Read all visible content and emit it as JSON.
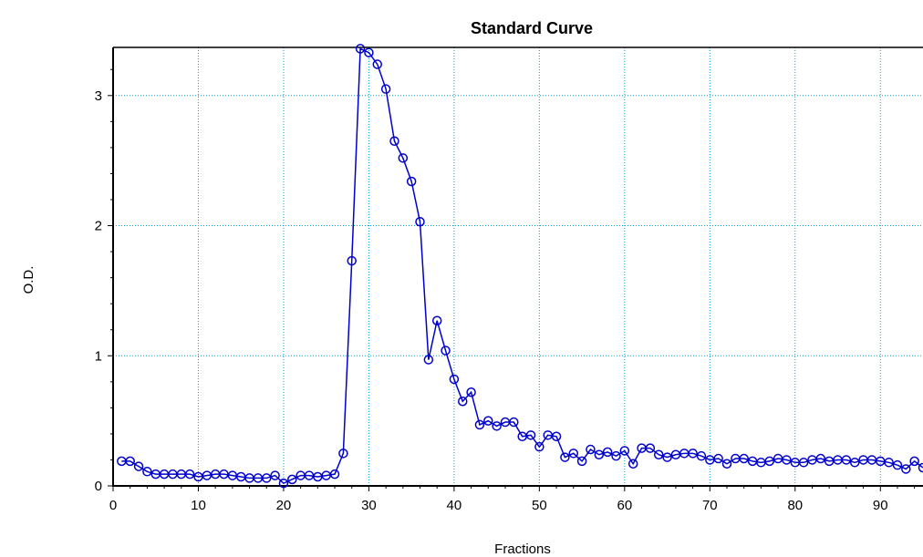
{
  "chart_data": {
    "type": "line",
    "title": "Standard Curve",
    "xlabel": "Fractions",
    "ylabel": "O.D.",
    "xlim": [
      0,
      95
    ],
    "ylim": [
      0,
      3.37
    ],
    "x_ticks": [
      0,
      10,
      20,
      30,
      40,
      50,
      60,
      70,
      80,
      90
    ],
    "y_ticks": [
      0,
      1,
      2,
      3
    ],
    "grid": true,
    "colors": {
      "series": "#0000cc",
      "grid": "#00a0d0",
      "axis": "#000000"
    },
    "marker": "circle",
    "series": [
      {
        "x": [
          1,
          2,
          3,
          4,
          5,
          6,
          7,
          8,
          9,
          10,
          11,
          12,
          13,
          14,
          15,
          16,
          17,
          18,
          19,
          20,
          21,
          22,
          23,
          24,
          25,
          26,
          27,
          28,
          29,
          30,
          31,
          32,
          33,
          34,
          35,
          36,
          37,
          38,
          39,
          40,
          41,
          42,
          43,
          44,
          45,
          46,
          47,
          48,
          49,
          50,
          51,
          52,
          53,
          54,
          55,
          56,
          57,
          58,
          59,
          60,
          61,
          62,
          63,
          64,
          65,
          66,
          67,
          68,
          69,
          70,
          71,
          72,
          73,
          74,
          75,
          76,
          77,
          78,
          79,
          80,
          81,
          82,
          83,
          84,
          85,
          86,
          87,
          88,
          89,
          90,
          91,
          92,
          93,
          94,
          95
        ],
        "y": [
          0.19,
          0.19,
          0.15,
          0.11,
          0.09,
          0.09,
          0.09,
          0.09,
          0.09,
          0.07,
          0.08,
          0.09,
          0.09,
          0.08,
          0.07,
          0.06,
          0.06,
          0.06,
          0.08,
          0.02,
          0.05,
          0.08,
          0.08,
          0.07,
          0.08,
          0.09,
          0.25,
          1.73,
          3.36,
          3.33,
          3.24,
          3.05,
          2.65,
          2.52,
          2.34,
          2.03,
          0.97,
          1.27,
          1.04,
          0.82,
          0.65,
          0.72,
          0.47,
          0.5,
          0.46,
          0.49,
          0.49,
          0.38,
          0.39,
          0.3,
          0.39,
          0.38,
          0.22,
          0.25,
          0.19,
          0.28,
          0.24,
          0.26,
          0.23,
          0.27,
          0.17,
          0.29,
          0.29,
          0.24,
          0.22,
          0.24,
          0.25,
          0.25,
          0.23,
          0.2,
          0.21,
          0.17,
          0.21,
          0.21,
          0.19,
          0.18,
          0.19,
          0.21,
          0.2,
          0.18,
          0.18,
          0.2,
          0.21,
          0.19,
          0.2,
          0.2,
          0.18,
          0.2,
          0.2,
          0.19,
          0.18,
          0.16,
          0.13,
          0.19,
          0.14
        ]
      }
    ]
  }
}
